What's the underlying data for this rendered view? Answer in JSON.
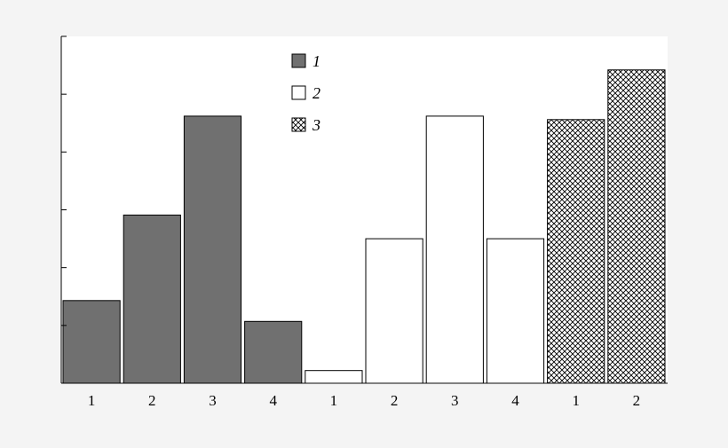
{
  "chart_data": {
    "type": "bar",
    "title": "",
    "xlabel": "",
    "ylabel": "",
    "ylim": [
      0,
      6
    ],
    "ytick_count": 6,
    "grid": false,
    "legend_position": "top-center",
    "categories": [
      "1",
      "2",
      "3",
      "4",
      "1",
      "2",
      "3",
      "4",
      "1",
      "2"
    ],
    "values": [
      1.43,
      2.91,
      4.62,
      1.07,
      0.22,
      2.5,
      4.62,
      2.5,
      4.56,
      5.42
    ],
    "group": [
      1,
      1,
      1,
      1,
      2,
      2,
      2,
      2,
      3,
      3
    ],
    "series": [
      {
        "name": "1",
        "fill": "#707070",
        "pattern": "solid"
      },
      {
        "name": "2",
        "fill": "#ffffff",
        "pattern": "solid"
      },
      {
        "name": "3",
        "fill": "#ffffff",
        "pattern": "crosshatch"
      }
    ]
  },
  "colors": {
    "background": "#f4f4f4",
    "plot_background": "#ffffff",
    "stroke": "#000000"
  }
}
